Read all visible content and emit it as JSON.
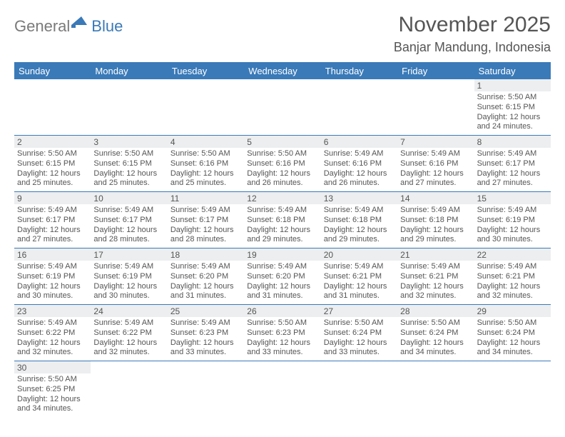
{
  "logo": {
    "text1": "General",
    "text2": "Blue"
  },
  "title": "November 2025",
  "location": "Banjar Mandung, Indonesia",
  "colors": {
    "accent": "#3a7ab8",
    "daynum_bg": "#eceeef",
    "text": "#555555"
  },
  "days_of_week": [
    "Sunday",
    "Monday",
    "Tuesday",
    "Wednesday",
    "Thursday",
    "Friday",
    "Saturday"
  ],
  "weeks": [
    [
      null,
      null,
      null,
      null,
      null,
      null,
      {
        "n": "1",
        "sr": "Sunrise: 5:50 AM",
        "ss": "Sunset: 6:15 PM",
        "d1": "Daylight: 12 hours",
        "d2": "and 24 minutes."
      }
    ],
    [
      {
        "n": "2",
        "sr": "Sunrise: 5:50 AM",
        "ss": "Sunset: 6:15 PM",
        "d1": "Daylight: 12 hours",
        "d2": "and 25 minutes."
      },
      {
        "n": "3",
        "sr": "Sunrise: 5:50 AM",
        "ss": "Sunset: 6:15 PM",
        "d1": "Daylight: 12 hours",
        "d2": "and 25 minutes."
      },
      {
        "n": "4",
        "sr": "Sunrise: 5:50 AM",
        "ss": "Sunset: 6:16 PM",
        "d1": "Daylight: 12 hours",
        "d2": "and 25 minutes."
      },
      {
        "n": "5",
        "sr": "Sunrise: 5:50 AM",
        "ss": "Sunset: 6:16 PM",
        "d1": "Daylight: 12 hours",
        "d2": "and 26 minutes."
      },
      {
        "n": "6",
        "sr": "Sunrise: 5:49 AM",
        "ss": "Sunset: 6:16 PM",
        "d1": "Daylight: 12 hours",
        "d2": "and 26 minutes."
      },
      {
        "n": "7",
        "sr": "Sunrise: 5:49 AM",
        "ss": "Sunset: 6:16 PM",
        "d1": "Daylight: 12 hours",
        "d2": "and 27 minutes."
      },
      {
        "n": "8",
        "sr": "Sunrise: 5:49 AM",
        "ss": "Sunset: 6:17 PM",
        "d1": "Daylight: 12 hours",
        "d2": "and 27 minutes."
      }
    ],
    [
      {
        "n": "9",
        "sr": "Sunrise: 5:49 AM",
        "ss": "Sunset: 6:17 PM",
        "d1": "Daylight: 12 hours",
        "d2": "and 27 minutes."
      },
      {
        "n": "10",
        "sr": "Sunrise: 5:49 AM",
        "ss": "Sunset: 6:17 PM",
        "d1": "Daylight: 12 hours",
        "d2": "and 28 minutes."
      },
      {
        "n": "11",
        "sr": "Sunrise: 5:49 AM",
        "ss": "Sunset: 6:17 PM",
        "d1": "Daylight: 12 hours",
        "d2": "and 28 minutes."
      },
      {
        "n": "12",
        "sr": "Sunrise: 5:49 AM",
        "ss": "Sunset: 6:18 PM",
        "d1": "Daylight: 12 hours",
        "d2": "and 29 minutes."
      },
      {
        "n": "13",
        "sr": "Sunrise: 5:49 AM",
        "ss": "Sunset: 6:18 PM",
        "d1": "Daylight: 12 hours",
        "d2": "and 29 minutes."
      },
      {
        "n": "14",
        "sr": "Sunrise: 5:49 AM",
        "ss": "Sunset: 6:18 PM",
        "d1": "Daylight: 12 hours",
        "d2": "and 29 minutes."
      },
      {
        "n": "15",
        "sr": "Sunrise: 5:49 AM",
        "ss": "Sunset: 6:19 PM",
        "d1": "Daylight: 12 hours",
        "d2": "and 30 minutes."
      }
    ],
    [
      {
        "n": "16",
        "sr": "Sunrise: 5:49 AM",
        "ss": "Sunset: 6:19 PM",
        "d1": "Daylight: 12 hours",
        "d2": "and 30 minutes."
      },
      {
        "n": "17",
        "sr": "Sunrise: 5:49 AM",
        "ss": "Sunset: 6:19 PM",
        "d1": "Daylight: 12 hours",
        "d2": "and 30 minutes."
      },
      {
        "n": "18",
        "sr": "Sunrise: 5:49 AM",
        "ss": "Sunset: 6:20 PM",
        "d1": "Daylight: 12 hours",
        "d2": "and 31 minutes."
      },
      {
        "n": "19",
        "sr": "Sunrise: 5:49 AM",
        "ss": "Sunset: 6:20 PM",
        "d1": "Daylight: 12 hours",
        "d2": "and 31 minutes."
      },
      {
        "n": "20",
        "sr": "Sunrise: 5:49 AM",
        "ss": "Sunset: 6:21 PM",
        "d1": "Daylight: 12 hours",
        "d2": "and 31 minutes."
      },
      {
        "n": "21",
        "sr": "Sunrise: 5:49 AM",
        "ss": "Sunset: 6:21 PM",
        "d1": "Daylight: 12 hours",
        "d2": "and 32 minutes."
      },
      {
        "n": "22",
        "sr": "Sunrise: 5:49 AM",
        "ss": "Sunset: 6:21 PM",
        "d1": "Daylight: 12 hours",
        "d2": "and 32 minutes."
      }
    ],
    [
      {
        "n": "23",
        "sr": "Sunrise: 5:49 AM",
        "ss": "Sunset: 6:22 PM",
        "d1": "Daylight: 12 hours",
        "d2": "and 32 minutes."
      },
      {
        "n": "24",
        "sr": "Sunrise: 5:49 AM",
        "ss": "Sunset: 6:22 PM",
        "d1": "Daylight: 12 hours",
        "d2": "and 32 minutes."
      },
      {
        "n": "25",
        "sr": "Sunrise: 5:49 AM",
        "ss": "Sunset: 6:23 PM",
        "d1": "Daylight: 12 hours",
        "d2": "and 33 minutes."
      },
      {
        "n": "26",
        "sr": "Sunrise: 5:50 AM",
        "ss": "Sunset: 6:23 PM",
        "d1": "Daylight: 12 hours",
        "d2": "and 33 minutes."
      },
      {
        "n": "27",
        "sr": "Sunrise: 5:50 AM",
        "ss": "Sunset: 6:24 PM",
        "d1": "Daylight: 12 hours",
        "d2": "and 33 minutes."
      },
      {
        "n": "28",
        "sr": "Sunrise: 5:50 AM",
        "ss": "Sunset: 6:24 PM",
        "d1": "Daylight: 12 hours",
        "d2": "and 34 minutes."
      },
      {
        "n": "29",
        "sr": "Sunrise: 5:50 AM",
        "ss": "Sunset: 6:24 PM",
        "d1": "Daylight: 12 hours",
        "d2": "and 34 minutes."
      }
    ],
    [
      {
        "n": "30",
        "sr": "Sunrise: 5:50 AM",
        "ss": "Sunset: 6:25 PM",
        "d1": "Daylight: 12 hours",
        "d2": "and 34 minutes."
      },
      null,
      null,
      null,
      null,
      null,
      null
    ]
  ]
}
